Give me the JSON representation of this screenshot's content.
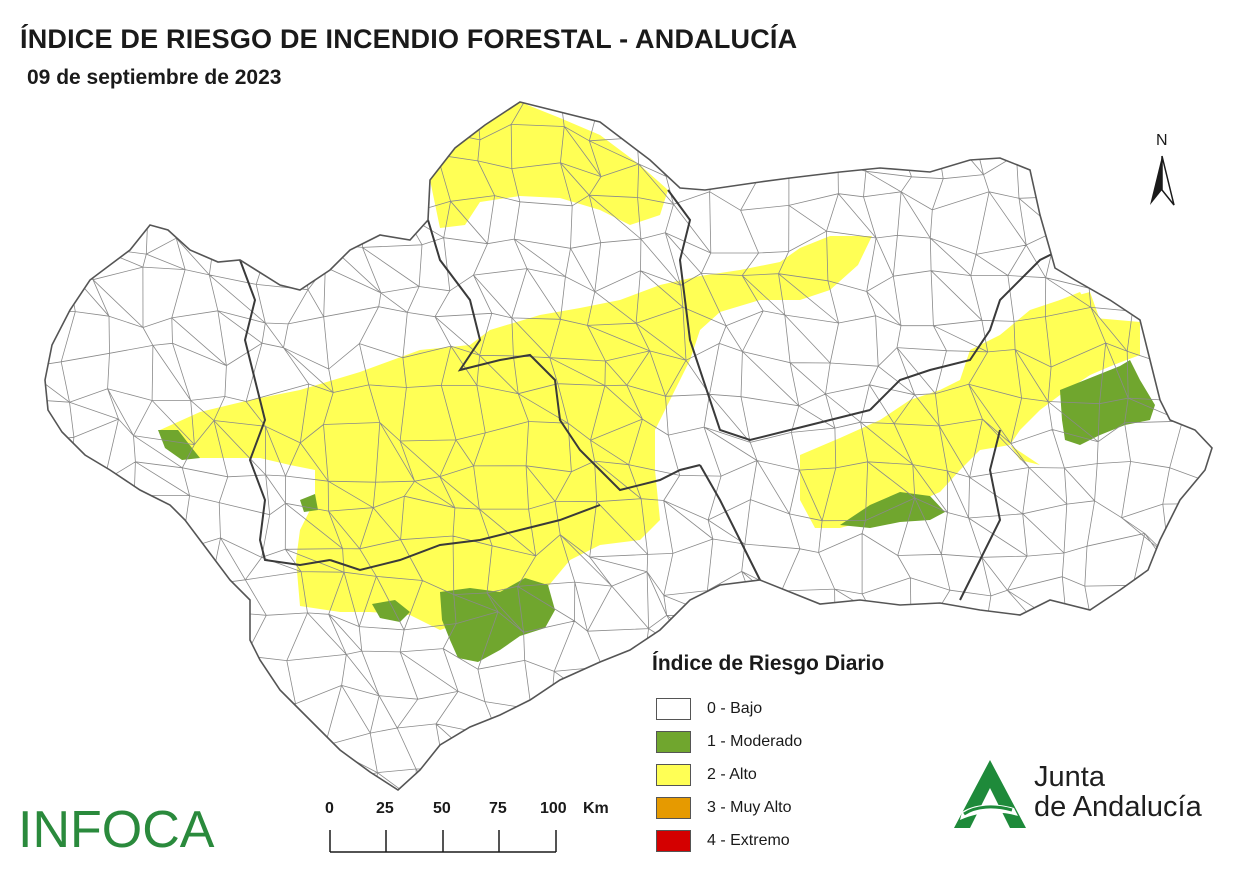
{
  "header": {
    "title": "ÍNDICE DE RIESGO DE INCENDIO FORESTAL - ANDALUCÍA",
    "date": "09 de septiembre de 2023"
  },
  "north_arrow": {
    "label": "N"
  },
  "legend": {
    "title": "Índice de Riesgo Diario",
    "items": [
      {
        "label": "0 - Bajo",
        "color": "#ffffff"
      },
      {
        "label": "1 - Moderado",
        "color": "#70a62e"
      },
      {
        "label": "2 - Alto",
        "color": "#ffff55"
      },
      {
        "label": "3 - Muy Alto",
        "color": "#e69a00"
      },
      {
        "label": "4 - Extremo",
        "color": "#d40000"
      }
    ]
  },
  "scale_bar": {
    "ticks": [
      "0",
      "25",
      "50",
      "75",
      "100"
    ],
    "unit": "Km"
  },
  "logos": {
    "infoca": "INFOCA",
    "junta_line1": "Junta",
    "junta_line2": "de Andalucía"
  },
  "colors": {
    "bajo": "#ffffff",
    "moderado": "#70a62e",
    "alto": "#ffff55",
    "outline": "#555555",
    "province_border": "#3a3a3a",
    "infoca_green": "#2a8a3c"
  }
}
